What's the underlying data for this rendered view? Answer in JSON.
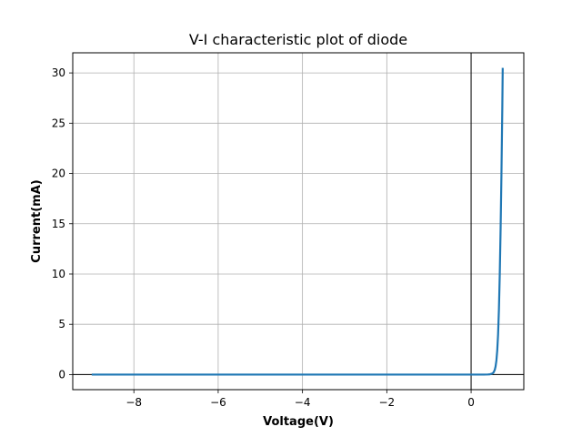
{
  "chart_data": {
    "type": "line",
    "title": "V-I characteristic plot of diode",
    "xlabel": "Voltage(V)",
    "ylabel": "Current(mA)",
    "xlim": [
      -9.45,
      1.25
    ],
    "ylim": [
      -1.5,
      32
    ],
    "xticks": [
      -8,
      -6,
      -4,
      -2,
      0
    ],
    "xtick_labels": [
      "−8",
      "−6",
      "−4",
      "−2",
      "0"
    ],
    "yticks": [
      0,
      5,
      10,
      15,
      20,
      25,
      30
    ],
    "ytick_labels": [
      "0",
      "5",
      "10",
      "15",
      "20",
      "25",
      "30"
    ],
    "grid": true,
    "reference_lines": {
      "x": 0,
      "y": 0
    },
    "series": [
      {
        "color": "#1f77b4",
        "x": [
          -9.0,
          -6.0,
          -3.0,
          0.0,
          0.3,
          0.4,
          0.45,
          0.5,
          0.53,
          0.56,
          0.58,
          0.6,
          0.62,
          0.64,
          0.66,
          0.68,
          0.7,
          0.72,
          0.74,
          0.75
        ],
        "y": [
          0.0,
          0.0,
          0.0,
          0.0,
          0.0,
          0.01,
          0.03,
          0.1,
          0.2,
          0.45,
          0.8,
          1.4,
          2.4,
          4.0,
          6.5,
          10.0,
          14.5,
          20.0,
          26.5,
          30.5
        ]
      }
    ]
  }
}
